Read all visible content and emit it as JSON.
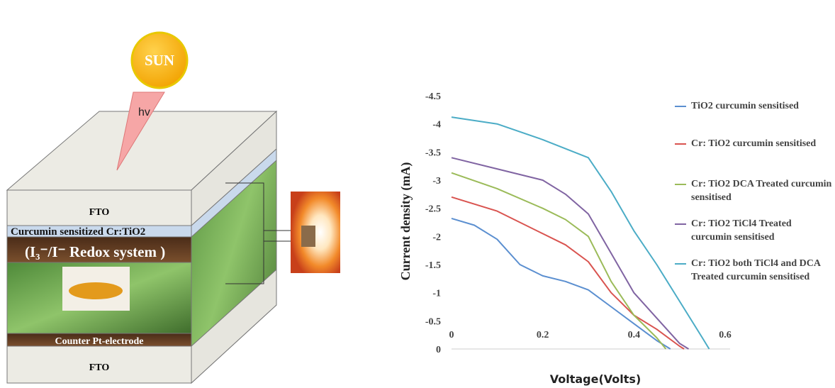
{
  "diagram": {
    "sun": "SUN",
    "photon": "hv",
    "top_layer": "FTO",
    "dye_layer": "Curcumin sensitized  Cr:TiO2",
    "electrolyte": "(I₃⁻/I⁻ Redox system )",
    "counter_electrode": "Counter Pt-electrode",
    "bottom_layer": "FTO"
  },
  "chart_data": {
    "type": "line",
    "xlabel": "Voltage(Volts)",
    "ylabel": "Current density (mA)",
    "xlim": [
      0,
      0.6
    ],
    "xticks": [
      0,
      0.2,
      0.4,
      0.6
    ],
    "ylim": [
      0,
      -4.5
    ],
    "yticks": [
      -4.5,
      -4,
      -3.5,
      -3,
      -2.5,
      -2,
      -1.5,
      -1,
      -0.5,
      0
    ],
    "series": [
      {
        "name": "TiO2 curcumin sensitised",
        "color": "#5b8fd0",
        "x": [
          0,
          0.05,
          0.1,
          0.15,
          0.2,
          0.25,
          0.3,
          0.35,
          0.4,
          0.45,
          0.48
        ],
        "values": [
          -2.32,
          -2.2,
          -1.95,
          -1.5,
          -1.3,
          -1.2,
          -1.05,
          -0.75,
          -0.45,
          -0.15,
          0
        ]
      },
      {
        "name": "Cr: TiO2 curcumin sensitised",
        "color": "#d9534f",
        "x": [
          0,
          0.1,
          0.2,
          0.25,
          0.3,
          0.35,
          0.4,
          0.45,
          0.5,
          0.51
        ],
        "values": [
          -2.7,
          -2.45,
          -2.05,
          -1.85,
          -1.55,
          -1.0,
          -0.6,
          -0.35,
          -0.05,
          0
        ]
      },
      {
        "name": "Cr: TiO2 DCA Treated curcumin sensitised",
        "color": "#9bbb59",
        "x": [
          0,
          0.1,
          0.2,
          0.25,
          0.3,
          0.35,
          0.4,
          0.45,
          0.47
        ],
        "values": [
          -3.13,
          -2.85,
          -2.5,
          -2.3,
          -2.0,
          -1.2,
          -0.6,
          -0.2,
          0
        ]
      },
      {
        "name": "Cr: TiO2 TiCl4 Treated curcumin sensitised",
        "color": "#8064a2",
        "x": [
          0,
          0.1,
          0.2,
          0.25,
          0.3,
          0.35,
          0.4,
          0.45,
          0.5,
          0.52
        ],
        "values": [
          -3.4,
          -3.2,
          -3.0,
          -2.75,
          -2.4,
          -1.7,
          -1.0,
          -0.55,
          -0.1,
          0
        ]
      },
      {
        "name": "Cr: TiO2 both TiCl4 and DCA Treated curcumin sensitised",
        "color": "#4bacc6",
        "x": [
          0,
          0.1,
          0.2,
          0.3,
          0.35,
          0.4,
          0.45,
          0.5,
          0.55,
          0.565
        ],
        "values": [
          -4.12,
          -4.0,
          -3.72,
          -3.4,
          -2.8,
          -2.1,
          -1.5,
          -0.85,
          -0.2,
          0
        ]
      }
    ]
  }
}
